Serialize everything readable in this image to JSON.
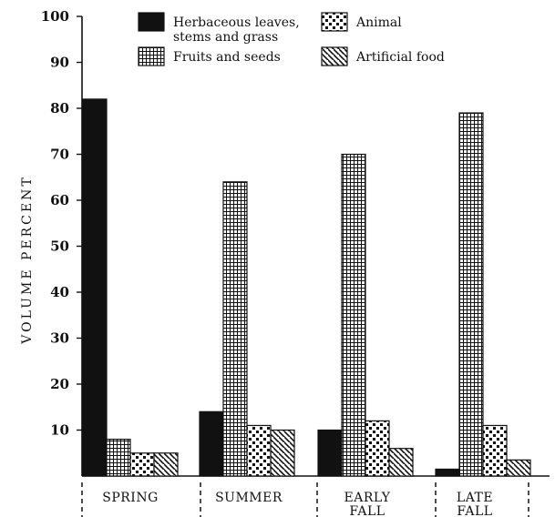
{
  "chart_data": {
    "type": "bar",
    "title": "",
    "xlabel": "",
    "ylabel": "VOLUME PERCENT",
    "ylim": [
      0,
      100
    ],
    "yticks": [
      10,
      20,
      30,
      40,
      50,
      60,
      70,
      80,
      90,
      100
    ],
    "categories": [
      {
        "lines": [
          "SPRING"
        ]
      },
      {
        "lines": [
          "SUMMER"
        ]
      },
      {
        "lines": [
          "EARLY",
          "FALL"
        ]
      },
      {
        "lines": [
          "LATE",
          "FALL"
        ]
      }
    ],
    "series": [
      {
        "name_lines": [
          "Herbaceous leaves,",
          "stems and grass"
        ],
        "pattern": "solid",
        "values": [
          82,
          14,
          10,
          1.5
        ]
      },
      {
        "name_lines": [
          "Fruits and seeds"
        ],
        "pattern": "grid",
        "values": [
          8,
          64,
          70,
          79
        ]
      },
      {
        "name_lines": [
          "Animal"
        ],
        "pattern": "dots",
        "values": [
          5,
          11,
          12,
          11
        ]
      },
      {
        "name_lines": [
          "Artificial food"
        ],
        "pattern": "hatch",
        "values": [
          5,
          10,
          6,
          3.5
        ]
      }
    ],
    "legend_position": "top",
    "grid": false
  }
}
